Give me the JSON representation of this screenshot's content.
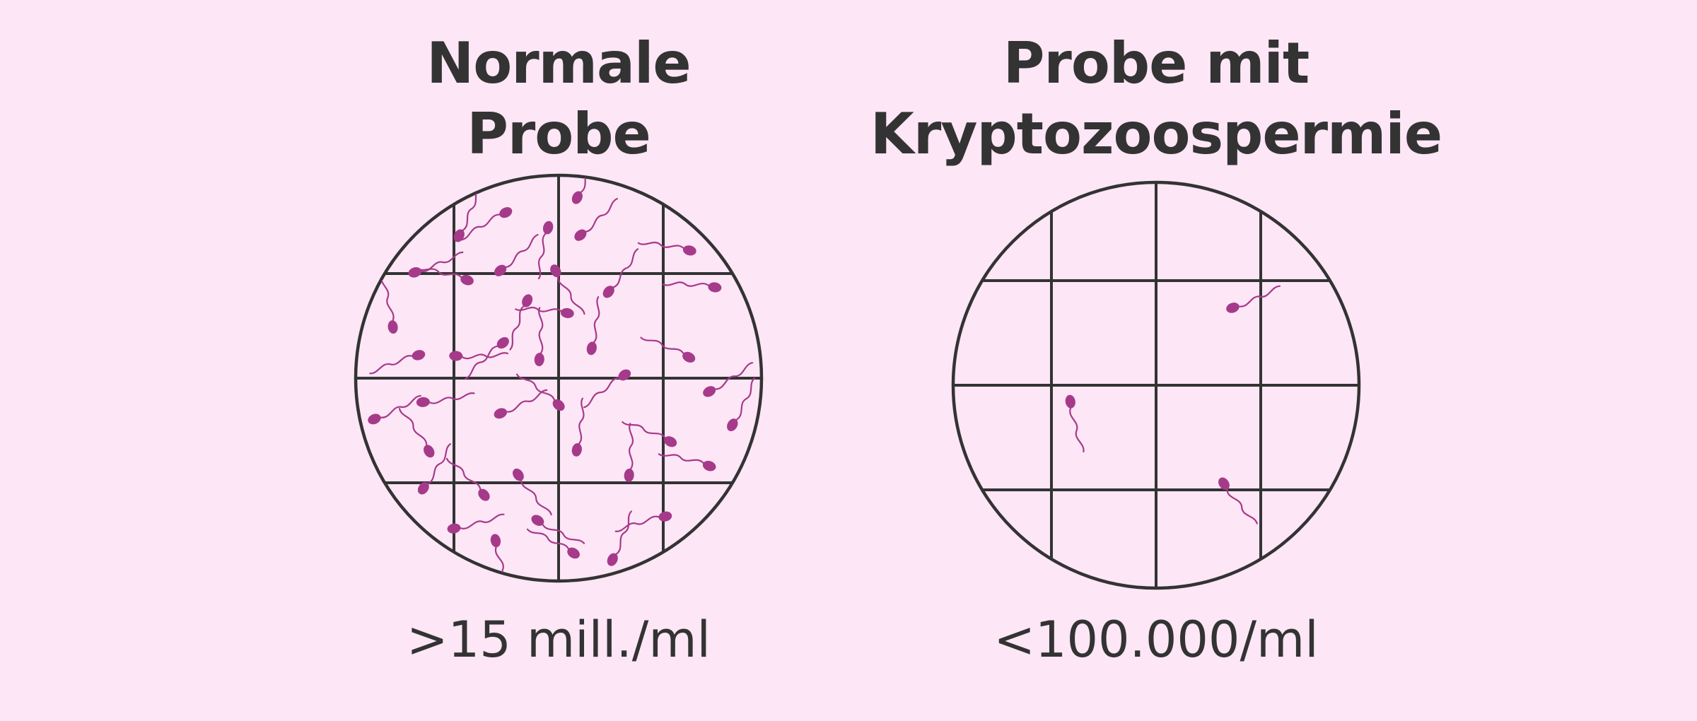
{
  "samples": [
    {
      "title_line1": "Normale",
      "title_line2": "Probe",
      "count": ">15 mill./ml",
      "sperm_cells": 42
    },
    {
      "title_line1": "Probe mit",
      "title_line2": "Kryptozoospermie",
      "count": "<100.000/ml",
      "sperm_cells": 3
    }
  ],
  "colors": {
    "background": "#fde6f6",
    "grid": "#333333",
    "sperm": "#a63a8a"
  }
}
